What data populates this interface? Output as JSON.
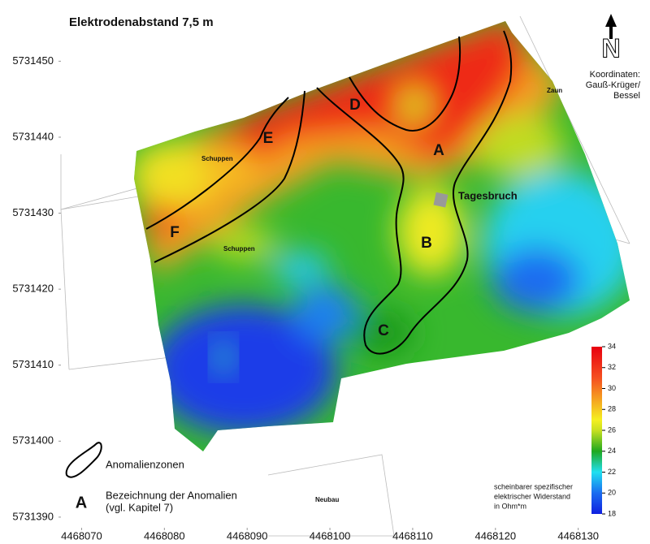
{
  "title": "Elektrodenabstand 7,5 m",
  "north": "N",
  "coordinates_note": [
    "Koordinaten:",
    "Gauß-Krüger/",
    "Bessel"
  ],
  "x_axis": {
    "lim": [
      4468067.5,
      4468137.2
    ],
    "ticks": [
      4468070,
      4468080,
      4468090,
      4468100,
      4468110,
      4468120,
      4468130
    ]
  },
  "y_axis": {
    "lim": [
      5731388.6,
      5731457.2
    ],
    "ticks": [
      5731390,
      5731400,
      5731410,
      5731420,
      5731430,
      5731440,
      5731450
    ]
  },
  "anomalies": [
    "A",
    "B",
    "C",
    "D",
    "E",
    "F"
  ],
  "features": [
    "Tagesbruch",
    "Schuppen",
    "Schuppen",
    "Zaun",
    "Neubau"
  ],
  "legend": {
    "zone_label": "Anomalienzonen",
    "letter": "A",
    "letter_label": [
      "Bezeichnung der Anomalien",
      "(vgl. Kapitel 7)"
    ]
  },
  "colorbar": {
    "title": [
      "scheinbarer spezifischer",
      "elektrischer Widerstand",
      "in Ohm*m"
    ],
    "lim": [
      18,
      34
    ],
    "ticks": [
      18,
      20,
      22,
      24,
      26,
      28,
      30,
      32,
      34
    ],
    "colors": [
      {
        "value": 18,
        "color": "#1020e0"
      },
      {
        "value": 20,
        "color": "#1a6cf0"
      },
      {
        "value": 22,
        "color": "#20e0f0"
      },
      {
        "value": 24,
        "color": "#1fa81f"
      },
      {
        "value": 26,
        "color": "#c8e020"
      },
      {
        "value": 27,
        "color": "#f5f020"
      },
      {
        "value": 29,
        "color": "#f5a020"
      },
      {
        "value": 31,
        "color": "#f55020"
      },
      {
        "value": 34,
        "color": "#e80010"
      }
    ]
  }
}
